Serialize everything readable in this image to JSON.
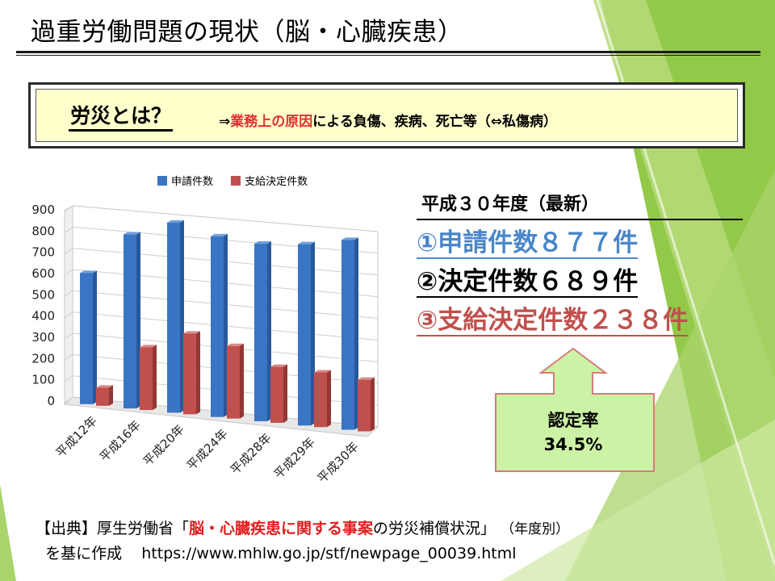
{
  "header": {
    "title": "過重労働問題の現状（脳・心臓疾患）"
  },
  "definition": {
    "label": "労災とは？",
    "arrow": "⇒",
    "highlight": "業務上の原因",
    "rest": "による負傷、疾病、死亡等（⇔私傷病）"
  },
  "stats": {
    "heading": "平成３０年度（最新）",
    "items": [
      "①申請件数８７７件",
      "②決定件数６８９件",
      "③支給決定件数２３８件"
    ],
    "rate_label": "認定率",
    "rate_value": "34.5%"
  },
  "source": {
    "prefix": "【出典】厚生労働省「",
    "highlight": "脳・心臓疾患に関する事案",
    "suffix": "の労災補償状況」",
    "note": "（年度別）",
    "line2_prefix": "を基に作成",
    "url": "https://www.mhlw.go.jp/stf/newpage_00039.html"
  },
  "colors": {
    "applications": "#4a86c8",
    "approved": "#c0504d",
    "deco_green": "#8cc63f",
    "box_fill": "#ccf2a6",
    "box_border": "#d87a7a",
    "def_fill": "#ffffcc"
  },
  "chart_data": {
    "type": "bar",
    "categories": [
      "平成12年",
      "平成16年",
      "平成20年",
      "平成24年",
      "平成28年",
      "平成29年",
      "平成30年"
    ],
    "series": [
      {
        "name": "申請件数",
        "values": [
          617,
          816,
          889,
          842,
          825,
          840,
          877
        ]
      },
      {
        "name": "支給決定件数",
        "values": [
          85,
          294,
          377,
          338,
          260,
          253,
          238
        ]
      }
    ],
    "ylim": [
      0,
      900
    ],
    "yticks": [
      0,
      100,
      200,
      300,
      400,
      500,
      600,
      700,
      800,
      900
    ],
    "grid": true,
    "legend": "top",
    "style": "3d"
  }
}
